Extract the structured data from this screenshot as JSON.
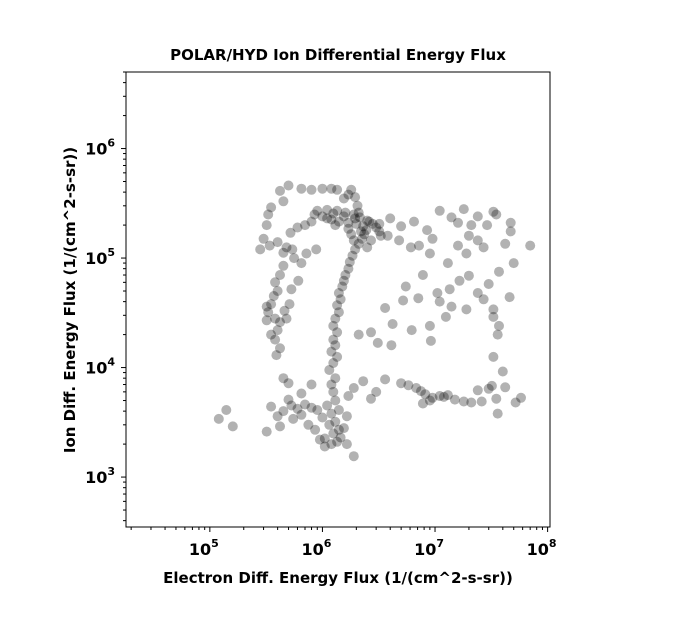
{
  "chart_data": {
    "type": "scatter",
    "title": "POLAR/HYD  Ion Differential Energy Flux",
    "xlabel": "Electron Diff. Energy Flux (1/(cm^2-s-sr))",
    "ylabel": "Ion Diff. Energy Flux (1/(cm^2-s-sr))",
    "x_scale": "log",
    "y_scale": "log",
    "xlim": [
      18000,
      105000000
    ],
    "ylim": [
      350,
      5000000
    ],
    "x_ticks": [
      {
        "base": "10",
        "exp": "5"
      },
      {
        "base": "10",
        "exp": "6"
      },
      {
        "base": "10",
        "exp": "7"
      },
      {
        "base": "10",
        "exp": "8"
      }
    ],
    "y_ticks": [
      {
        "base": "10",
        "exp": "3"
      },
      {
        "base": "10",
        "exp": "4"
      },
      {
        "base": "10",
        "exp": "5"
      },
      {
        "base": "10",
        "exp": "6"
      }
    ],
    "grid": false,
    "marker_color": "#000000",
    "marker_opacity": 0.3,
    "series": [
      {
        "points": [
          [
            1200000,
            2000
          ],
          [
            1350000,
            2100
          ],
          [
            1450000,
            2300
          ],
          [
            1050000,
            2250
          ],
          [
            1250000,
            2500
          ],
          [
            1400000,
            2700
          ],
          [
            1150000,
            3000
          ],
          [
            1300000,
            3200
          ],
          [
            1550000,
            2800
          ],
          [
            1000000,
            3500
          ],
          [
            1200000,
            3800
          ],
          [
            1400000,
            4100
          ],
          [
            1650000,
            3600
          ],
          [
            1100000,
            4500
          ],
          [
            1300000,
            5000
          ],
          [
            1250000,
            6000
          ],
          [
            1200000,
            7000
          ],
          [
            1300000,
            8000
          ],
          [
            1150000,
            9500
          ],
          [
            1250000,
            11000
          ],
          [
            1350000,
            12500
          ],
          [
            1200000,
            14000
          ],
          [
            1300000,
            16000
          ],
          [
            1250000,
            18000
          ],
          [
            1350000,
            21000
          ],
          [
            1250000,
            24000
          ],
          [
            1300000,
            28000
          ],
          [
            1400000,
            32000
          ],
          [
            1350000,
            37000
          ],
          [
            1450000,
            42000
          ],
          [
            1400000,
            48000
          ],
          [
            1500000,
            55000
          ],
          [
            1550000,
            62000
          ],
          [
            1600000,
            70000
          ],
          [
            1700000,
            80000
          ],
          [
            1750000,
            92000
          ],
          [
            1850000,
            105000
          ],
          [
            1950000,
            120000
          ],
          [
            2100000,
            135000
          ],
          [
            2250000,
            150000
          ],
          [
            2350000,
            165000
          ],
          [
            2450000,
            180000
          ],
          [
            2300000,
            195000
          ],
          [
            2000000,
            205000
          ],
          [
            1700000,
            210000
          ],
          [
            1400000,
            215000
          ],
          [
            1200000,
            225000
          ],
          [
            1000000,
            240000
          ],
          [
            850000,
            250000
          ],
          [
            900000,
            270000
          ],
          [
            1100000,
            275000
          ],
          [
            1350000,
            270000
          ],
          [
            1600000,
            260000
          ],
          [
            1900000,
            250000
          ],
          [
            2150000,
            235000
          ],
          [
            2500000,
            220000
          ],
          [
            2800000,
            205000
          ],
          [
            3000000,
            190000
          ],
          [
            3200000,
            175000
          ],
          [
            3300000,
            160000
          ],
          [
            2700000,
            145000
          ],
          [
            2500000,
            125000
          ],
          [
            1700000,
            185000
          ],
          [
            1800000,
            165000
          ],
          [
            2200000,
            175000
          ],
          [
            1900000,
            145000
          ],
          [
            1950000,
            230000
          ],
          [
            2100000,
            260000
          ],
          [
            1550000,
            240000
          ],
          [
            1250000,
            255000
          ],
          [
            1100000,
            230000
          ],
          [
            1300000,
            200000
          ],
          [
            1800000,
            420000
          ],
          [
            1700000,
            380000
          ],
          [
            1550000,
            350000
          ],
          [
            1950000,
            360000
          ],
          [
            2050000,
            300000
          ],
          [
            1350000,
            420000
          ],
          [
            1200000,
            430000
          ],
          [
            1000000,
            430000
          ],
          [
            800000,
            420000
          ],
          [
            650000,
            430000
          ],
          [
            500000,
            460000
          ],
          [
            420000,
            410000
          ],
          [
            450000,
            330000
          ],
          [
            350000,
            290000
          ],
          [
            330000,
            250000
          ],
          [
            320000,
            200000
          ],
          [
            300000,
            150000
          ],
          [
            280000,
            120000
          ],
          [
            340000,
            130000
          ],
          [
            400000,
            140000
          ],
          [
            520000,
            170000
          ],
          [
            600000,
            190000
          ],
          [
            700000,
            200000
          ],
          [
            800000,
            215000
          ],
          [
            540000,
            120000
          ],
          [
            560000,
            100000
          ],
          [
            450000,
            85000
          ],
          [
            420000,
            70000
          ],
          [
            380000,
            60000
          ],
          [
            400000,
            50000
          ],
          [
            370000,
            45000
          ],
          [
            350000,
            38000
          ],
          [
            330000,
            32000
          ],
          [
            380000,
            28000
          ],
          [
            420000,
            26000
          ],
          [
            400000,
            22000
          ],
          [
            380000,
            18000
          ],
          [
            420000,
            15000
          ],
          [
            390000,
            13000
          ],
          [
            460000,
            33000
          ],
          [
            480000,
            28000
          ],
          [
            510000,
            38000
          ],
          [
            530000,
            52000
          ],
          [
            610000,
            62000
          ],
          [
            650000,
            90000
          ],
          [
            720000,
            110000
          ],
          [
            880000,
            120000
          ],
          [
            450000,
            112000
          ],
          [
            480000,
            125000
          ],
          [
            350000,
            20000
          ],
          [
            320000,
            36000
          ],
          [
            320000,
            27000
          ],
          [
            530000,
            4500
          ],
          [
            600000,
            4200
          ],
          [
            700000,
            4600
          ],
          [
            800000,
            4300
          ],
          [
            900000,
            4100
          ],
          [
            650000,
            3700
          ],
          [
            550000,
            3400
          ],
          [
            450000,
            4000
          ],
          [
            400000,
            3600
          ],
          [
            350000,
            4400
          ],
          [
            500000,
            5100
          ],
          [
            420000,
            2900
          ],
          [
            320000,
            2600
          ],
          [
            750000,
            3000
          ],
          [
            860000,
            2700
          ],
          [
            950000,
            2200
          ],
          [
            1050000,
            1900
          ],
          [
            1650000,
            2000
          ],
          [
            1900000,
            1550
          ],
          [
            1700000,
            5500
          ],
          [
            1900000,
            6500
          ],
          [
            2300000,
            7500
          ],
          [
            3000000,
            6000
          ],
          [
            3600000,
            7800
          ],
          [
            2700000,
            5200
          ],
          [
            140000,
            4100
          ],
          [
            120000,
            3400
          ],
          [
            160000,
            2900
          ],
          [
            500000,
            7200
          ],
          [
            450000,
            8000
          ],
          [
            800000,
            7000
          ],
          [
            650000,
            5800
          ],
          [
            5000000,
            7200
          ],
          [
            5800000,
            6900
          ],
          [
            6800000,
            6500
          ],
          [
            7500000,
            6100
          ],
          [
            8200000,
            5700
          ],
          [
            9500000,
            5300
          ],
          [
            11000000,
            5500
          ],
          [
            13000000,
            5600
          ],
          [
            15000000,
            5100
          ],
          [
            18000000,
            4900
          ],
          [
            21000000,
            4800
          ],
          [
            24000000,
            6200
          ],
          [
            30000000,
            6400
          ],
          [
            35000000,
            5200
          ],
          [
            32000000,
            6800
          ],
          [
            42000000,
            6600
          ],
          [
            58000000,
            5300
          ],
          [
            52000000,
            4800
          ],
          [
            40000000,
            9200
          ],
          [
            33000000,
            12500
          ],
          [
            36000000,
            3800
          ],
          [
            26000000,
            4900
          ],
          [
            7800000,
            4700
          ],
          [
            12000000,
            5400
          ],
          [
            9000000,
            5000
          ],
          [
            4200000,
            25000
          ],
          [
            6200000,
            22000
          ],
          [
            9200000,
            17500
          ],
          [
            4100000,
            16000
          ],
          [
            3100000,
            16800
          ],
          [
            2700000,
            21000
          ],
          [
            2100000,
            20000
          ],
          [
            3600000,
            35000
          ],
          [
            5200000,
            41000
          ],
          [
            7100000,
            43000
          ],
          [
            11000000,
            40000
          ],
          [
            14000000,
            36000
          ],
          [
            19000000,
            34000
          ],
          [
            27000000,
            42000
          ],
          [
            33000000,
            34000
          ],
          [
            37000000,
            24000
          ],
          [
            33000000,
            29000
          ],
          [
            46000000,
            44000
          ],
          [
            36000000,
            20000
          ],
          [
            12500000,
            29000
          ],
          [
            9000000,
            24000
          ],
          [
            5500000,
            55000
          ],
          [
            7800000,
            70000
          ],
          [
            10500000,
            48000
          ],
          [
            13500000,
            52000
          ],
          [
            16500000,
            62000
          ],
          [
            20000000,
            69000
          ],
          [
            24000000,
            48000
          ],
          [
            30000000,
            58000
          ],
          [
            37000000,
            75000
          ],
          [
            50000000,
            90000
          ],
          [
            13000000,
            90000
          ],
          [
            9000000,
            110000
          ],
          [
            6100000,
            125000
          ],
          [
            4800000,
            145000
          ],
          [
            3800000,
            160000
          ],
          [
            16000000,
            130000
          ],
          [
            20000000,
            160000
          ],
          [
            24000000,
            145000
          ],
          [
            29000000,
            200000
          ],
          [
            35000000,
            250000
          ],
          [
            47000000,
            210000
          ],
          [
            42000000,
            135000
          ],
          [
            47000000,
            175000
          ],
          [
            27000000,
            125000
          ],
          [
            19000000,
            110000
          ],
          [
            14000000,
            235000
          ],
          [
            18000000,
            280000
          ],
          [
            11000000,
            270000
          ],
          [
            21000000,
            200000
          ],
          [
            24000000,
            240000
          ],
          [
            8500000,
            180000
          ],
          [
            6500000,
            215000
          ],
          [
            5000000,
            195000
          ],
          [
            3200000,
            205000
          ],
          [
            4000000,
            230000
          ],
          [
            2600000,
            215000
          ],
          [
            70000000,
            130000
          ],
          [
            33000000,
            265000
          ],
          [
            16000000,
            210000
          ],
          [
            9500000,
            150000
          ],
          [
            7200000,
            130000
          ]
        ]
      }
    ]
  }
}
